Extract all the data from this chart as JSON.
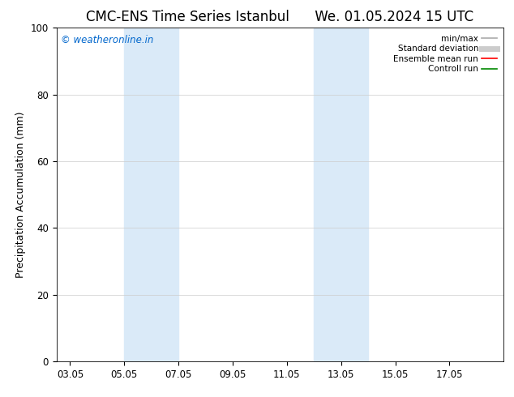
{
  "title_left": "CMC-ENS Time Series Istanbul",
  "title_right": "We. 01.05.2024 15 UTC",
  "ylabel": "Precipitation Accumulation (mm)",
  "ylim": [
    0,
    100
  ],
  "yticks": [
    0,
    20,
    40,
    60,
    80,
    100
  ],
  "xtick_labels": [
    "03.05",
    "05.05",
    "07.05",
    "09.05",
    "11.05",
    "13.05",
    "15.05",
    "17.05"
  ],
  "xtick_positions": [
    2,
    4,
    6,
    8,
    10,
    12,
    14,
    16
  ],
  "xmin": 1.5,
  "xmax": 18.0,
  "watermark": "© weatheronline.in",
  "watermark_color": "#0066cc",
  "bg_color": "#ffffff",
  "shaded_bands": [
    {
      "x_start": 4.0,
      "x_end": 6.0,
      "color": "#daeaf8"
    },
    {
      "x_start": 11.0,
      "x_end": 13.0,
      "color": "#daeaf8"
    }
  ],
  "legend_entries": [
    {
      "label": "min/max",
      "color": "#aaaaaa",
      "lw": 1.2,
      "style": "solid"
    },
    {
      "label": "Standard deviation",
      "color": "#cccccc",
      "lw": 5,
      "style": "solid"
    },
    {
      "label": "Ensemble mean run",
      "color": "#ff0000",
      "lw": 1.2,
      "style": "solid"
    },
    {
      "label": "Controll run",
      "color": "#008800",
      "lw": 1.2,
      "style": "solid"
    }
  ],
  "title_fontsize": 12,
  "axis_label_fontsize": 9,
  "tick_fontsize": 8.5,
  "legend_fontsize": 7.5
}
